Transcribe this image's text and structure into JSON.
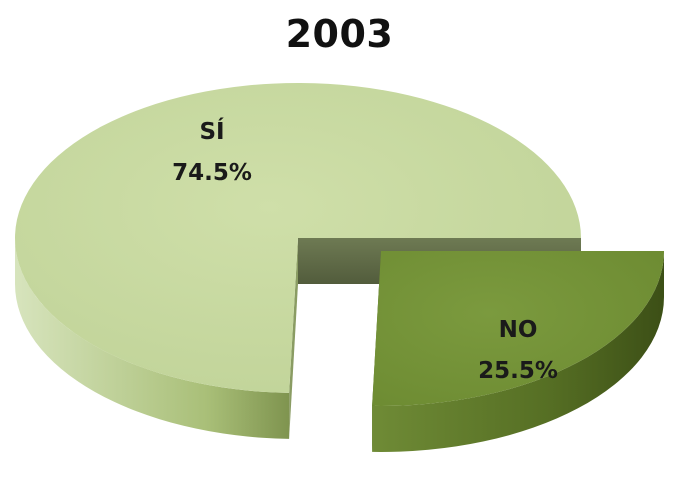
{
  "chart_data": {
    "type": "pie",
    "title": "2003",
    "three_d": true,
    "exploded": "NO",
    "legend": "none",
    "slices": [
      {
        "label": "SÍ",
        "value": 74.5,
        "value_label": "74.5%",
        "color": "#c3d69b",
        "side_color": "#a6bd73"
      },
      {
        "label": "NO",
        "value": 25.5,
        "value_label": "25.5%",
        "color": "#76923c",
        "side_color": "#5a7428"
      }
    ]
  }
}
